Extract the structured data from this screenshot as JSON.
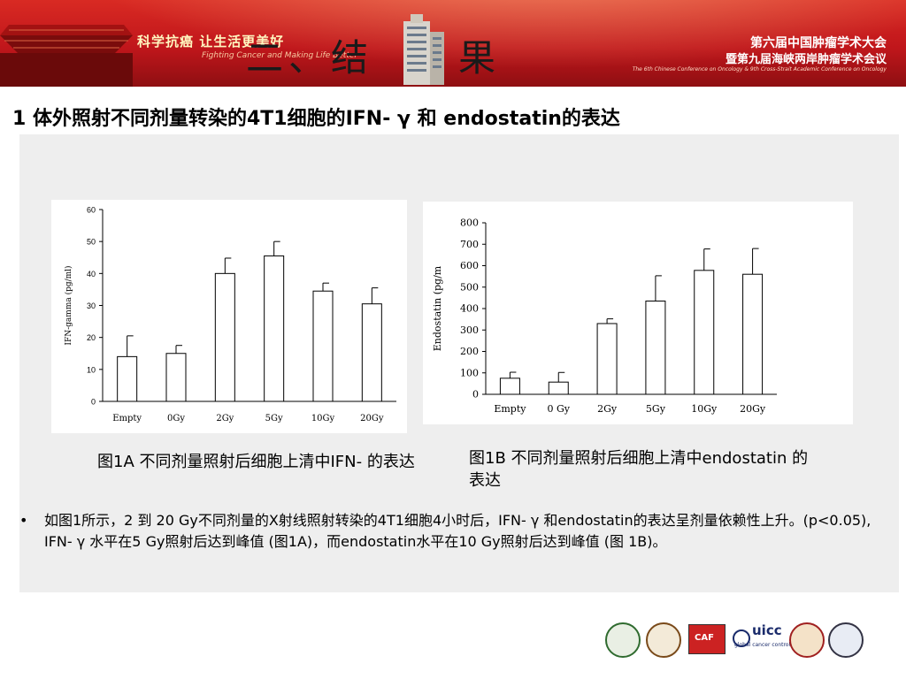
{
  "header": {
    "slogan": "科学抗癌 让生活更美好",
    "slogan_en": "Fighting Cancer and Making Life Better",
    "section_title": "二、结　　果",
    "conference_line1": "第六届中国肿瘤学术大会",
    "conference_line2": "暨第九届海峡两岸肿瘤学术会议",
    "conference_en": "The 6th Chinese Conference on Oncology & 9th Cross-Strait Academic Conference on Oncology"
  },
  "slide": {
    "heading": "1 体外照射不同剂量转染的4T1细胞的IFN- γ  和 endostatin的表达"
  },
  "captions": {
    "a": "图1A 不同剂量照射后细胞上清中IFN- 的表达",
    "b": "图1B 不同剂量照射后细胞上清中endostatin 的表达"
  },
  "bullet": {
    "symbol": "•",
    "text": "如图1所示，2 到 20 Gy不同剂量的X射线照射转染的4T1细胞4小时后，IFN- γ  和endostatin的表达呈剂量依赖性上升。(p<0.05), IFN- γ 水平在5 Gy照射后达到峰值 (图1A)，而endostatin水平在10 Gy照射后达到峰值 (图 1B)。"
  },
  "logos": {
    "uicc_text": "uicc",
    "uicc_sub": "global cancer control",
    "caf_text": "CAF"
  },
  "chart_data": [
    {
      "type": "bar",
      "categories": [
        "Empty",
        "0Gy",
        "2Gy",
        "5Gy",
        "10Gy",
        "20Gy"
      ],
      "values": [
        14,
        15,
        40,
        45.5,
        34.5,
        30.5
      ],
      "errors": [
        6.5,
        2.5,
        4.8,
        4.5,
        2.5,
        5
      ],
      "ylabel": "IFN-gamma (pg/ml)",
      "xlabel": "",
      "ylim": [
        0,
        60
      ],
      "yticks": [
        0,
        10,
        20,
        30,
        40,
        50,
        60
      ],
      "grid": false
    },
    {
      "type": "bar",
      "categories": [
        "Empty",
        "0 Gy",
        "2Gy",
        "5Gy",
        "10Gy",
        "20Gy"
      ],
      "values": [
        75,
        57,
        330,
        435,
        578,
        560
      ],
      "errors": [
        28,
        45,
        22,
        118,
        100,
        120
      ],
      "ylabel": "Endostatin (pg/m",
      "xlabel": "",
      "ylim": [
        0,
        800
      ],
      "yticks": [
        0,
        100,
        200,
        300,
        400,
        500,
        600,
        700,
        800
      ],
      "grid": false
    }
  ]
}
